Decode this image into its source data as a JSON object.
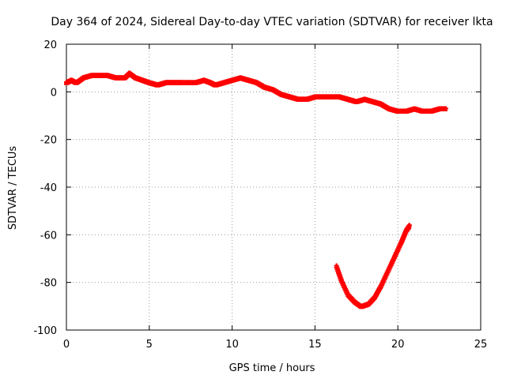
{
  "chart_data": {
    "type": "scatter",
    "title": "Day 364 of 2024, Sidereal Day-to-day VTEC variation (SDTVAR) for receiver lkta",
    "xlabel": "GPS time / hours",
    "ylabel": "SDTVAR / TECUs",
    "xlim": [
      0,
      25
    ],
    "ylim": [
      -100,
      20
    ],
    "xticks": [
      0,
      5,
      10,
      15,
      20,
      25
    ],
    "yticks": [
      -100,
      -80,
      -60,
      -40,
      -20,
      0,
      20
    ],
    "grid": true,
    "series_color": "#ff0000",
    "series": [
      {
        "name": "main band",
        "points": [
          [
            0.0,
            4
          ],
          [
            0.3,
            5
          ],
          [
            0.6,
            4
          ],
          [
            1.0,
            6
          ],
          [
            1.5,
            7
          ],
          [
            2.0,
            7
          ],
          [
            2.5,
            7
          ],
          [
            3.0,
            6
          ],
          [
            3.5,
            6
          ],
          [
            3.8,
            8
          ],
          [
            4.2,
            6
          ],
          [
            4.6,
            5
          ],
          [
            5.0,
            4
          ],
          [
            5.5,
            3
          ],
          [
            6.0,
            4
          ],
          [
            6.5,
            4
          ],
          [
            7.0,
            4
          ],
          [
            7.8,
            4
          ],
          [
            8.3,
            5
          ],
          [
            8.7,
            4
          ],
          [
            9.0,
            3
          ],
          [
            9.5,
            4
          ],
          [
            10.0,
            5
          ],
          [
            10.5,
            6
          ],
          [
            11.0,
            5
          ],
          [
            11.5,
            4
          ],
          [
            12.0,
            2
          ],
          [
            12.5,
            1
          ],
          [
            13.0,
            -1
          ],
          [
            13.5,
            -2
          ],
          [
            14.0,
            -3
          ],
          [
            14.5,
            -3
          ],
          [
            15.0,
            -2
          ],
          [
            15.5,
            -2
          ],
          [
            16.0,
            -2
          ],
          [
            16.5,
            -2
          ],
          [
            17.0,
            -3
          ],
          [
            17.5,
            -4
          ],
          [
            18.0,
            -3
          ],
          [
            18.5,
            -4
          ],
          [
            19.0,
            -5
          ],
          [
            19.5,
            -7
          ],
          [
            20.0,
            -8
          ],
          [
            20.5,
            -8
          ],
          [
            21.0,
            -7
          ],
          [
            21.5,
            -8
          ],
          [
            22.0,
            -8
          ],
          [
            22.5,
            -7
          ],
          [
            22.9,
            -7
          ]
        ]
      },
      {
        "name": "late arc",
        "points": [
          [
            16.3,
            -73
          ],
          [
            16.6,
            -79
          ],
          [
            17.0,
            -85
          ],
          [
            17.4,
            -88
          ],
          [
            17.8,
            -90
          ],
          [
            18.2,
            -89
          ],
          [
            18.6,
            -86
          ],
          [
            19.0,
            -81
          ],
          [
            19.4,
            -75
          ],
          [
            19.8,
            -69
          ],
          [
            20.2,
            -63
          ],
          [
            20.5,
            -58
          ],
          [
            20.7,
            -56
          ]
        ]
      }
    ]
  }
}
